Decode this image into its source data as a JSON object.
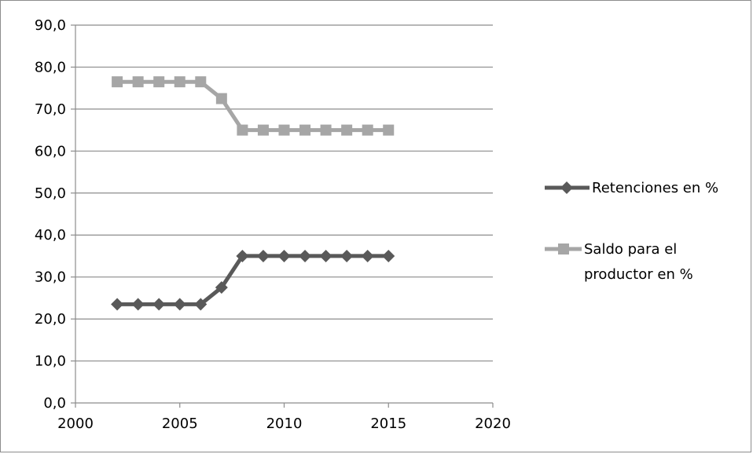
{
  "chart_data": {
    "type": "line",
    "title": "",
    "xlabel": "",
    "ylabel": "",
    "xlim": [
      2000,
      2020
    ],
    "ylim": [
      0,
      90
    ],
    "x_ticks": [
      "2000",
      "2005",
      "2010",
      "2015",
      "2020"
    ],
    "y_ticks": [
      "0,0",
      "10,0",
      "20,0",
      "30,0",
      "40,0",
      "50,0",
      "60,0",
      "70,0",
      "80,0",
      "90,0"
    ],
    "grid": "horizontal",
    "legend_position": "right",
    "series": [
      {
        "name": "Retenciones en %",
        "color": "#595959",
        "marker": "diamond",
        "x": [
          2002,
          2003,
          2004,
          2005,
          2006,
          2007,
          2008,
          2009,
          2010,
          2011,
          2012,
          2013,
          2014,
          2015
        ],
        "y": [
          23.5,
          23.5,
          23.5,
          23.5,
          23.5,
          27.5,
          35,
          35,
          35,
          35,
          35,
          35,
          35,
          35
        ]
      },
      {
        "name_lines": [
          "Saldo para el",
          "productor en %"
        ],
        "color": "#a6a6a6",
        "marker": "square",
        "x": [
          2002,
          2003,
          2004,
          2005,
          2006,
          2007,
          2008,
          2009,
          2010,
          2011,
          2012,
          2013,
          2014,
          2015
        ],
        "y": [
          76.5,
          76.5,
          76.5,
          76.5,
          76.5,
          72.5,
          65,
          65,
          65,
          65,
          65,
          65,
          65,
          65
        ]
      }
    ]
  }
}
